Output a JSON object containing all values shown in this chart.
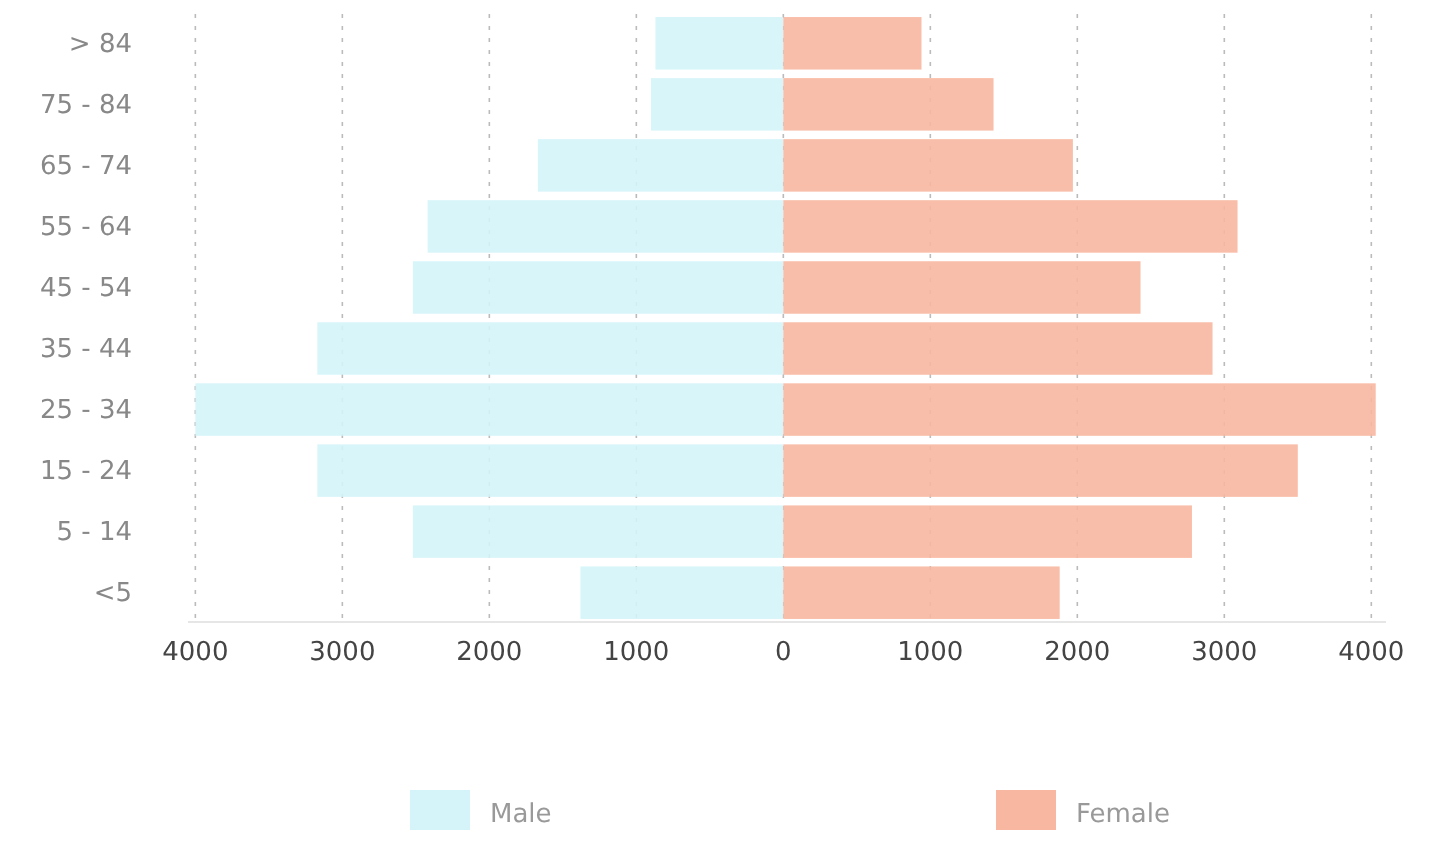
{
  "chart_data": {
    "type": "bar",
    "orientation": "horizontal",
    "categories": [
      "> 84",
      "75 - 84",
      "65 - 74",
      "55 - 64",
      "45 - 54",
      "35 - 44",
      "25 - 34",
      "15 - 24",
      "5 - 14",
      "<5"
    ],
    "series": [
      {
        "name": "Male",
        "color": "#d4f4fa",
        "values": [
          -870,
          -900,
          -1670,
          -2420,
          -2520,
          -3170,
          -4000,
          -3170,
          -2520,
          -1380
        ]
      },
      {
        "name": "Female",
        "color": "#f8b7a0",
        "values": [
          940,
          1430,
          1970,
          3090,
          2430,
          2920,
          4030,
          3500,
          2780,
          1880
        ]
      }
    ],
    "xlim": [
      -4050,
      4100
    ],
    "xticks": [
      {
        "value": -4000,
        "label": "4000"
      },
      {
        "value": -3000,
        "label": "3000"
      },
      {
        "value": -2000,
        "label": "2000"
      },
      {
        "value": -1000,
        "label": "1000"
      },
      0,
      1000,
      2000,
      3000,
      4000
    ],
    "grid": "x",
    "legend": "bottom"
  }
}
